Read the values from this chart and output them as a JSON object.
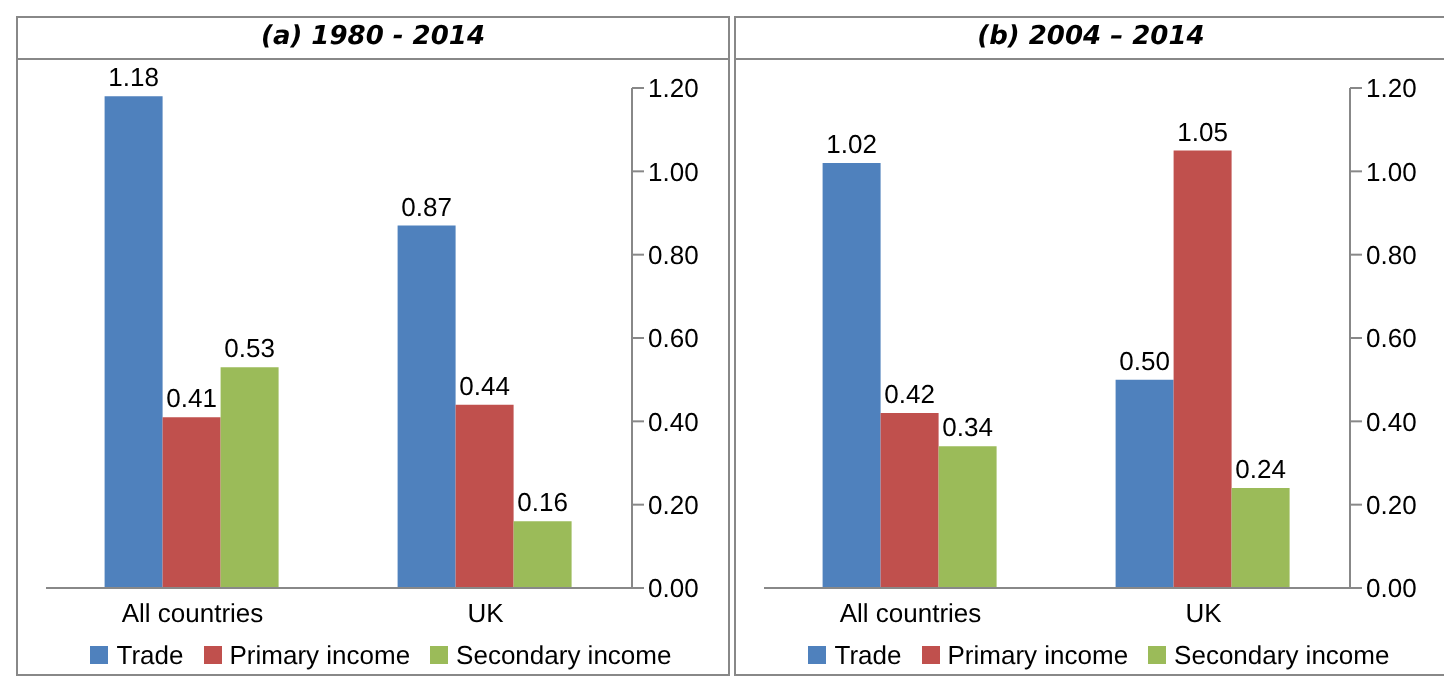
{
  "chart_data": [
    {
      "type": "bar",
      "title": "(a) 1980 - 2014",
      "categories": [
        "All countries",
        "UK"
      ],
      "series": [
        {
          "name": "Trade",
          "color": "#4f81bd",
          "values": [
            1.18,
            0.87
          ],
          "value_labels": [
            "1.18",
            "0.87"
          ]
        },
        {
          "name": "Primary income",
          "color": "#c0504d",
          "values": [
            0.41,
            0.44
          ],
          "value_labels": [
            "0.41",
            "0.44"
          ]
        },
        {
          "name": "Secondary income",
          "color": "#9bbb59",
          "values": [
            0.53,
            0.16
          ],
          "value_labels": [
            "0.53",
            "0.16"
          ]
        }
      ],
      "ylim": [
        0,
        1.2
      ],
      "yticks": [
        {
          "value": 0,
          "label": "0.00"
        },
        {
          "value": 0.2,
          "label": "0.20"
        },
        {
          "value": 0.4,
          "label": "0.40"
        },
        {
          "value": 0.6,
          "label": "0.60"
        },
        {
          "value": 0.8,
          "label": "0.80"
        },
        {
          "value": 1,
          "label": "1.00"
        },
        {
          "value": 1.2,
          "label": "1.20"
        }
      ],
      "grid": false,
      "legend": "bottom"
    },
    {
      "type": "bar",
      "title": "(b) 2004 – 2014",
      "categories": [
        "All countries",
        "UK"
      ],
      "series": [
        {
          "name": "Trade",
          "color": "#4f81bd",
          "values": [
            1.02,
            0.5
          ],
          "value_labels": [
            "1.02",
            "0.50"
          ]
        },
        {
          "name": "Primary income",
          "color": "#c0504d",
          "values": [
            0.42,
            1.05
          ],
          "value_labels": [
            "0.42",
            "1.05"
          ]
        },
        {
          "name": "Secondary income",
          "color": "#9bbb59",
          "values": [
            0.34,
            0.24
          ],
          "value_labels": [
            "0.34",
            "0.24"
          ]
        }
      ],
      "ylim": [
        0,
        1.2
      ],
      "yticks": [
        {
          "value": 0,
          "label": "0.00"
        },
        {
          "value": 0.2,
          "label": "0.20"
        },
        {
          "value": 0.4,
          "label": "0.40"
        },
        {
          "value": 0.6,
          "label": "0.60"
        },
        {
          "value": 0.8,
          "label": "0.80"
        },
        {
          "value": 1,
          "label": "1.00"
        },
        {
          "value": 1.2,
          "label": "1.20"
        }
      ],
      "grid": false,
      "legend": "bottom"
    }
  ]
}
